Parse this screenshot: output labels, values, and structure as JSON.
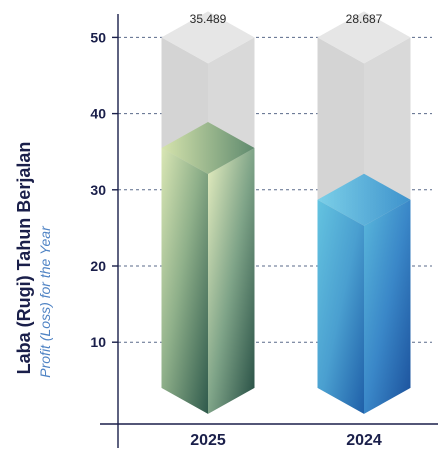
{
  "chart_data": {
    "type": "bar",
    "ylabel": "Laba (Rugi) Tahun Berjalan",
    "ylabel_sub": "Profit (Loss) for the Year",
    "categories": [
      "2025",
      "2024"
    ],
    "values": [
      35.489,
      28.687
    ],
    "value_labels": [
      "35.489",
      "28.687"
    ],
    "background_max": 50,
    "ylim": [
      0,
      50
    ],
    "yticks": [
      10,
      20,
      30,
      40,
      50
    ],
    "grid": true,
    "colors": {
      "axis": "#1a1f4a",
      "grid": "#5a6a8a",
      "track": "#dcdcdc",
      "bar_2025": "#5f8a6e",
      "bar_2024": "#3a87c8"
    }
  }
}
